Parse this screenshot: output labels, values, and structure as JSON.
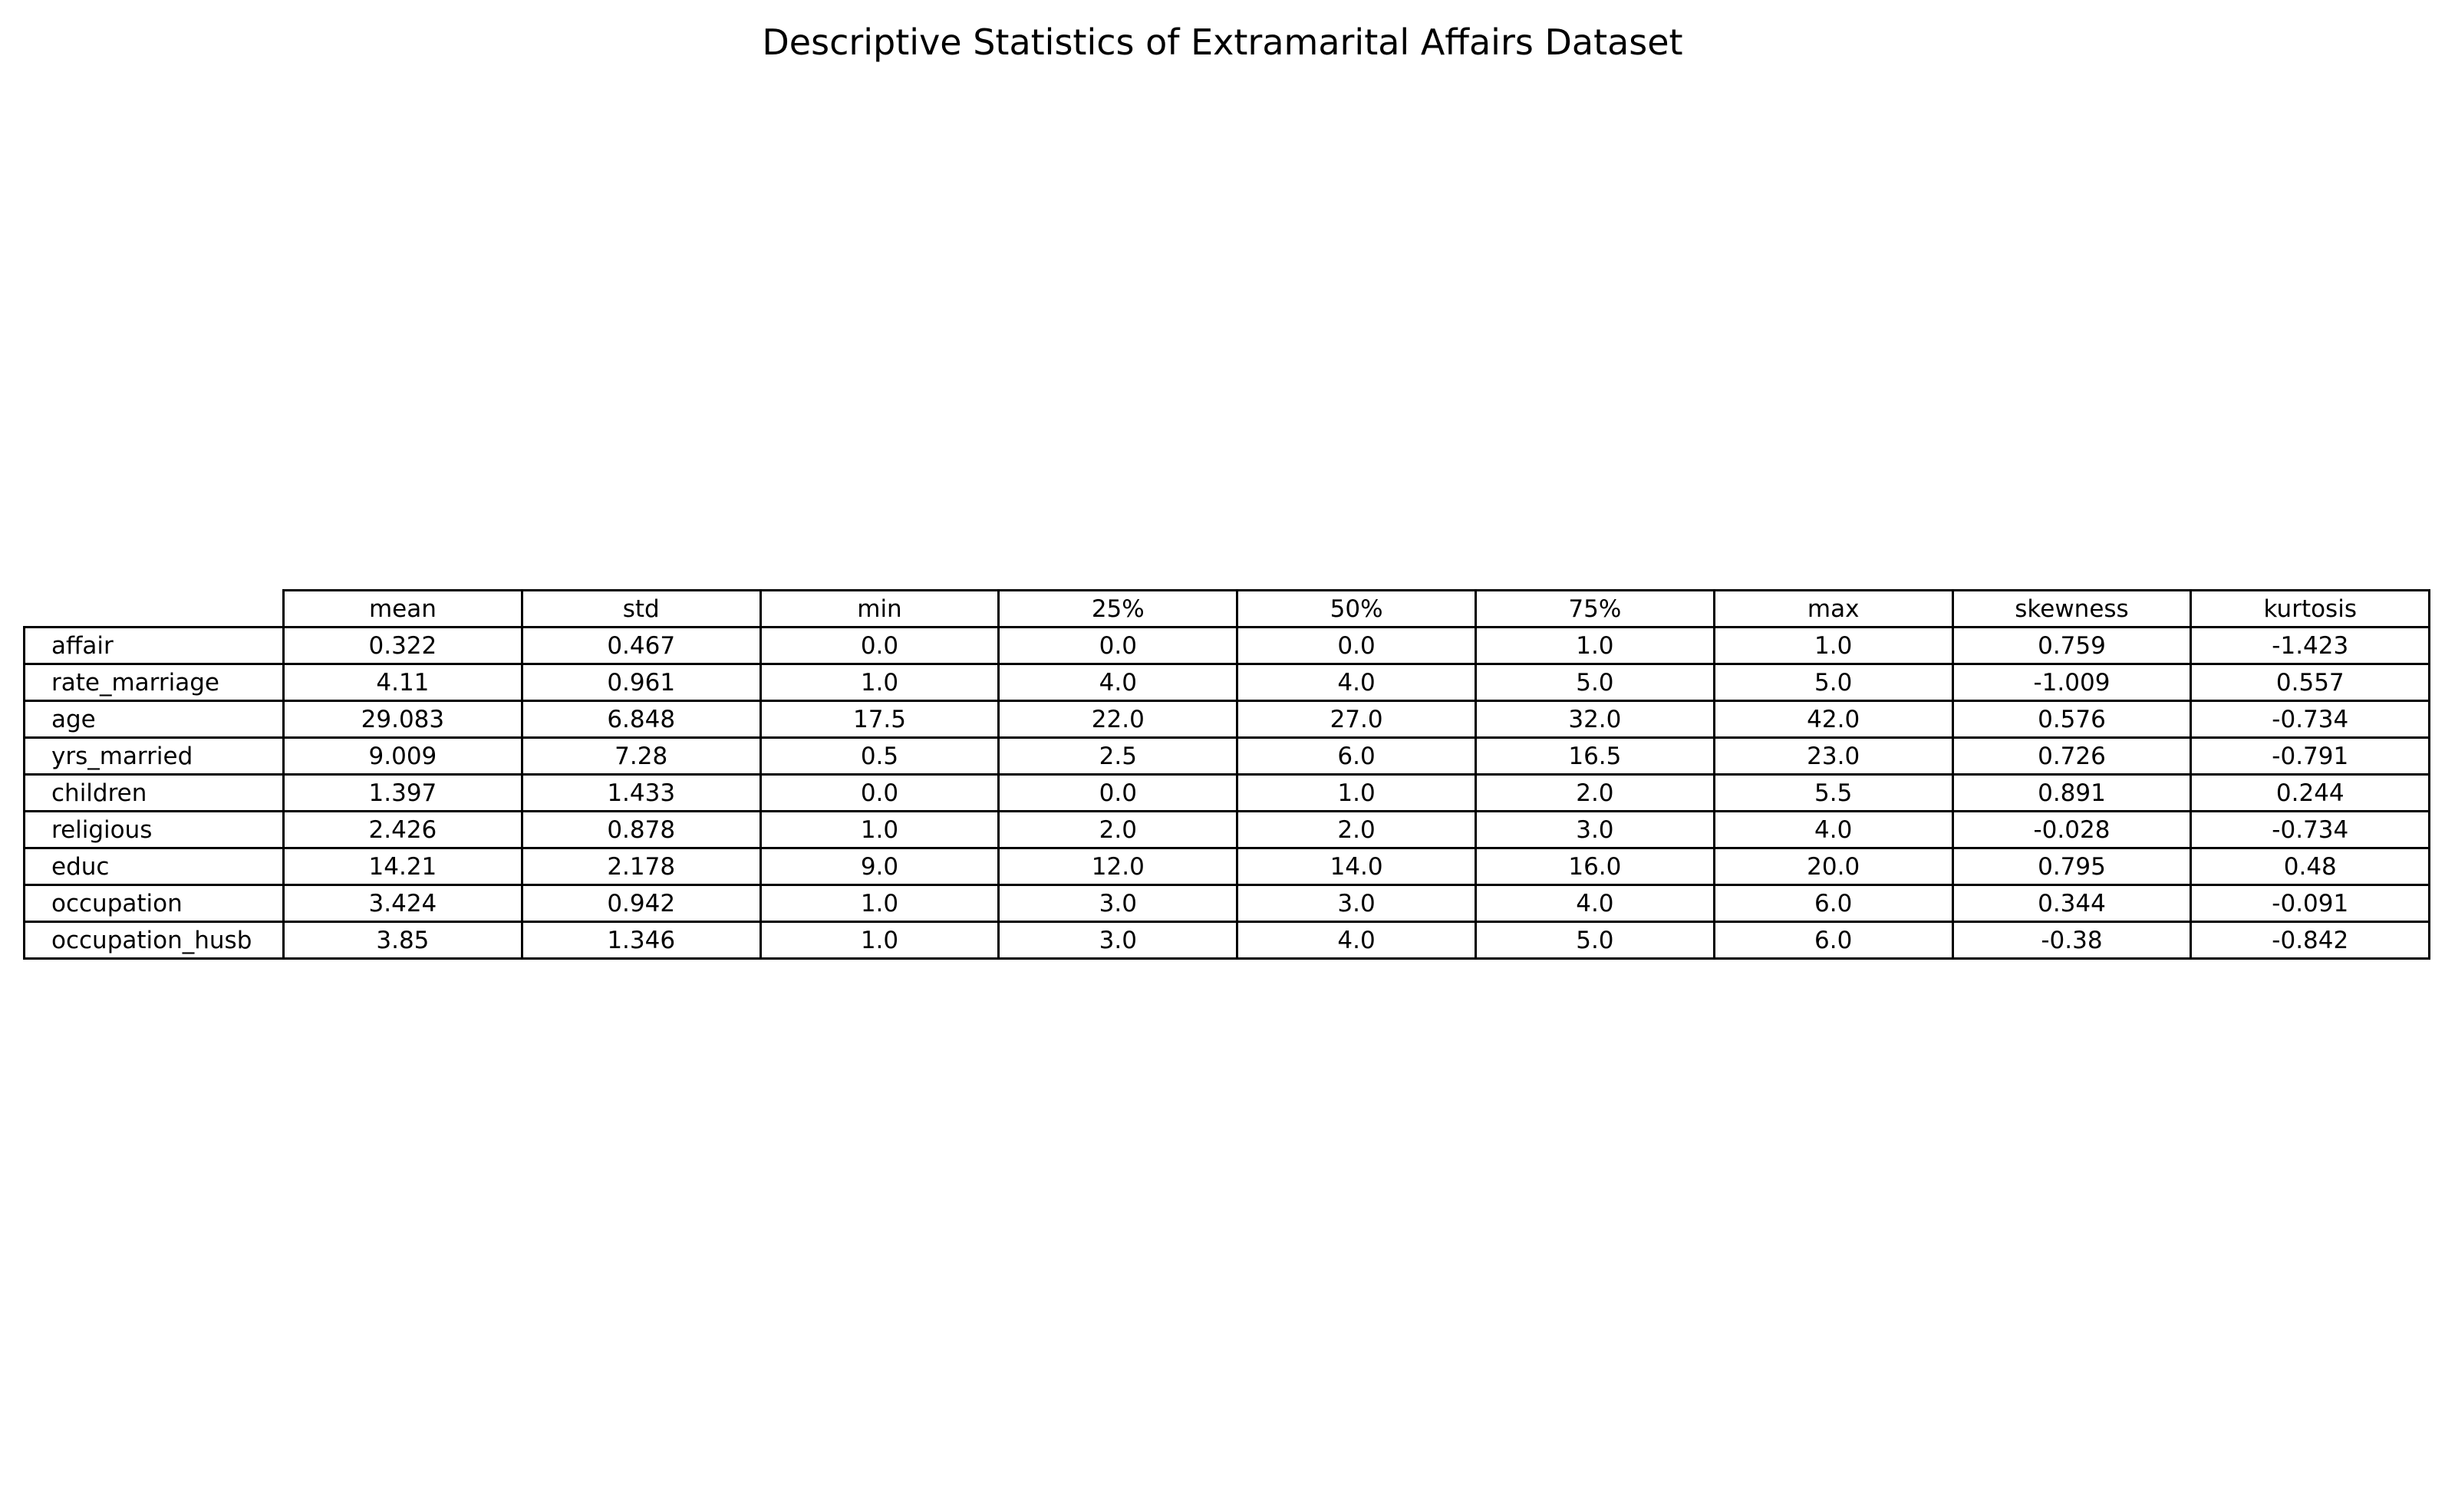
{
  "chart_data": {
    "type": "table",
    "title": "Descriptive Statistics of Extramarital Affairs Dataset",
    "columns": [
      "mean",
      "std",
      "min",
      "25%",
      "50%",
      "75%",
      "max",
      "skewness",
      "kurtosis"
    ],
    "rows": [
      {
        "label": "affair",
        "values": [
          "0.322",
          "0.467",
          "0.0",
          "0.0",
          "0.0",
          "1.0",
          "1.0",
          "0.759",
          "-1.423"
        ]
      },
      {
        "label": "rate_marriage",
        "values": [
          "4.11",
          "0.961",
          "1.0",
          "4.0",
          "4.0",
          "5.0",
          "5.0",
          "-1.009",
          "0.557"
        ]
      },
      {
        "label": "age",
        "values": [
          "29.083",
          "6.848",
          "17.5",
          "22.0",
          "27.0",
          "32.0",
          "42.0",
          "0.576",
          "-0.734"
        ]
      },
      {
        "label": "yrs_married",
        "values": [
          "9.009",
          "7.28",
          "0.5",
          "2.5",
          "6.0",
          "16.5",
          "23.0",
          "0.726",
          "-0.791"
        ]
      },
      {
        "label": "children",
        "values": [
          "1.397",
          "1.433",
          "0.0",
          "0.0",
          "1.0",
          "2.0",
          "5.5",
          "0.891",
          "0.244"
        ]
      },
      {
        "label": "religious",
        "values": [
          "2.426",
          "0.878",
          "1.0",
          "2.0",
          "2.0",
          "3.0",
          "4.0",
          "-0.028",
          "-0.734"
        ]
      },
      {
        "label": "educ",
        "values": [
          "14.21",
          "2.178",
          "9.0",
          "12.0",
          "14.0",
          "16.0",
          "20.0",
          "0.795",
          "0.48"
        ]
      },
      {
        "label": "occupation",
        "values": [
          "3.424",
          "0.942",
          "1.0",
          "3.0",
          "3.0",
          "4.0",
          "6.0",
          "0.344",
          "-0.091"
        ]
      },
      {
        "label": "occupation_husb",
        "values": [
          "3.85",
          "1.346",
          "1.0",
          "3.0",
          "4.0",
          "5.0",
          "6.0",
          "-0.38",
          "-0.842"
        ]
      }
    ]
  }
}
